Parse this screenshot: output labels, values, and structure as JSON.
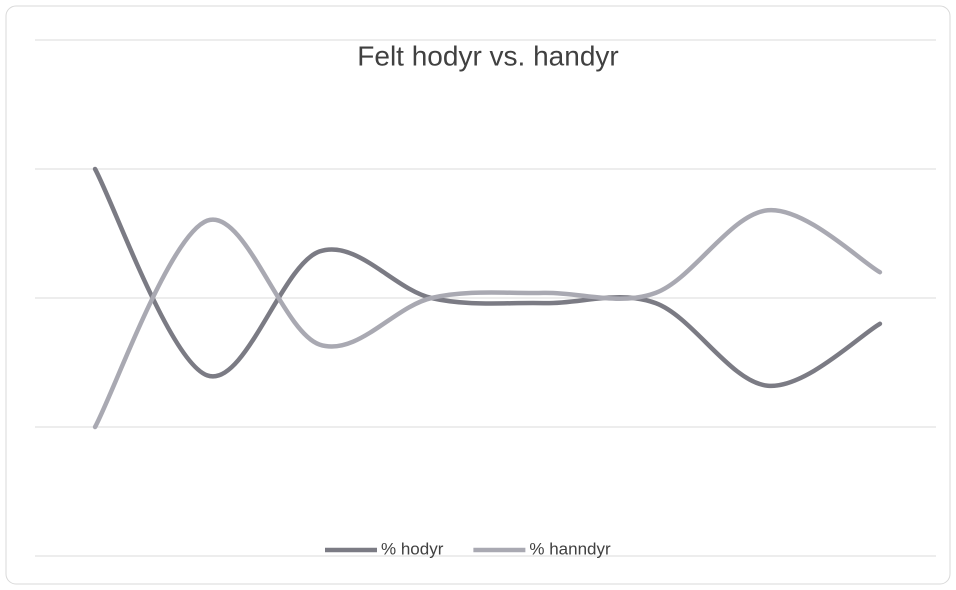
{
  "chart_data": {
    "type": "line",
    "title": "Felt hodyr vs. handyr",
    "categories": [
      null,
      null,
      null,
      null,
      null,
      null,
      null,
      null
    ],
    "series": [
      {
        "name": "% hodyr",
        "color": "#7b7b84",
        "values": [
          75,
          35,
          59,
          50,
          49,
          49,
          33,
          45
        ]
      },
      {
        "name": "% hanndyr",
        "color": "#a9a9b2",
        "values": [
          25,
          65,
          41,
          50,
          51,
          51,
          67,
          55
        ]
      }
    ],
    "ylim": [
      0,
      100
    ],
    "yticks": [
      0,
      25,
      50,
      75,
      100
    ],
    "grid": true,
    "smooth": true,
    "legend": "bottom"
  }
}
